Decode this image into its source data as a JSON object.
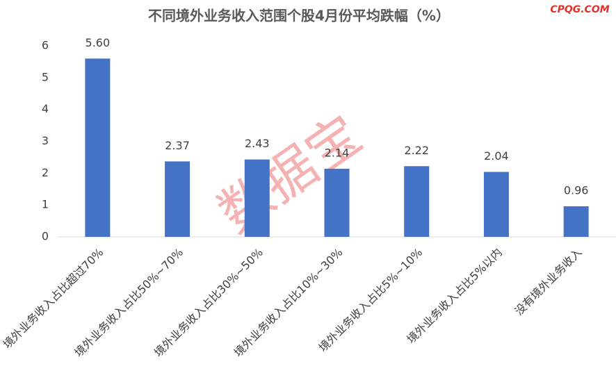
{
  "chart_data": {
    "type": "bar",
    "title": "不同境外业务收入范围个股4月份平均跌幅（%）",
    "watermarks": [
      "CPQG.COM",
      "数据宝"
    ],
    "categories": [
      "境外业务收入占比超过70%",
      "境外业务收入占比50%~70%",
      "境外业务收入占比30%~50%",
      "境外业务收入占比10%~30%",
      "境外业务收入占比5%~10%",
      "境外业务收入占比5%以内",
      "没有境外业务收入"
    ],
    "values": [
      5.6,
      2.37,
      2.43,
      2.14,
      2.22,
      2.04,
      0.96
    ],
    "value_labels": [
      "5.60",
      "2.37",
      "2.43",
      "2.14",
      "2.22",
      "2.04",
      "0.96"
    ],
    "color": "#4472c4",
    "ylim": [
      0,
      6
    ],
    "yticks": [
      0,
      1,
      2,
      3,
      4,
      5,
      6
    ],
    "grid": false
  }
}
